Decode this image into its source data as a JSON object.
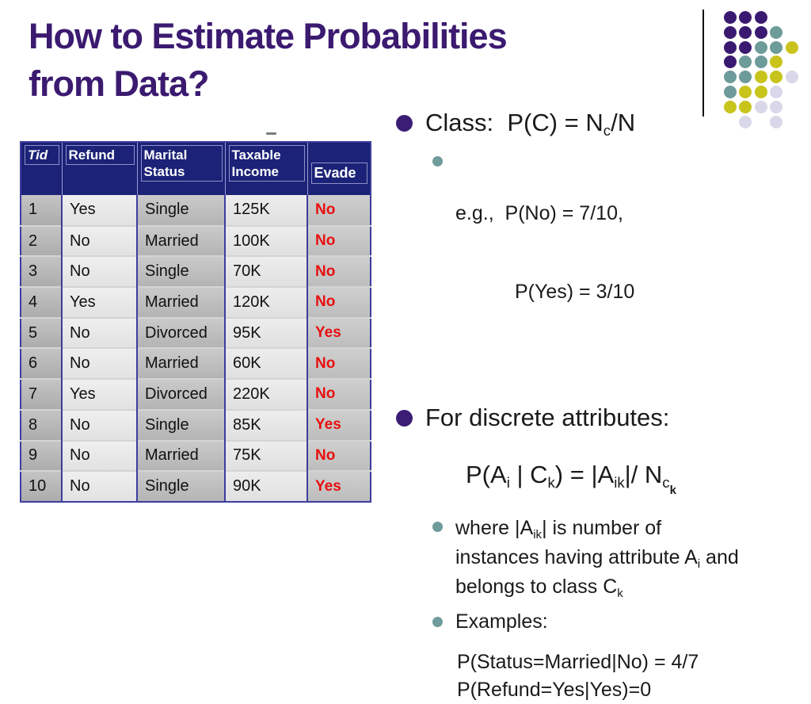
{
  "title": {
    "text": "How to Estimate Probabilities\nfrom Data?"
  },
  "table": {
    "headers": [
      "Tid",
      "Refund",
      "Marital\nStatus",
      "Taxable\nIncome",
      "Evade"
    ],
    "header_keys": [
      "tid",
      "refund",
      "marital-status",
      "taxable-income",
      "evade"
    ],
    "rows": [
      [
        "1",
        "Yes",
        "Single",
        "125K",
        "No"
      ],
      [
        "2",
        "No",
        "Married",
        "100K",
        "No"
      ],
      [
        "3",
        "No",
        "Single",
        "70K",
        "No"
      ],
      [
        "4",
        "Yes",
        "Married",
        "120K",
        "No"
      ],
      [
        "5",
        "No",
        "Divorced",
        "95K",
        "Yes"
      ],
      [
        "6",
        "No",
        "Married",
        "60K",
        "No"
      ],
      [
        "7",
        "Yes",
        "Divorced",
        "220K",
        "No"
      ],
      [
        "8",
        "No",
        "Single",
        "85K",
        "Yes"
      ],
      [
        "9",
        "No",
        "Married",
        "75K",
        "No"
      ],
      [
        "10",
        "No",
        "Single",
        "90K",
        "Yes"
      ]
    ]
  },
  "content": {
    "class_formula": {
      "pre": "Class:  P(C) = N",
      "sub": "c",
      "post": "/N"
    },
    "eg_line1": "e.g.,  P(No) = 7/10,",
    "eg_line2": "P(Yes) = 3/10",
    "discrete_heading": "For discrete attributes:",
    "cond_formula": {
      "s1": "P(A",
      "sub1": "i",
      "s2": " | C",
      "sub2": "k",
      "s3": ") = |A",
      "sub3": "ik",
      "s4": "|/ N",
      "sub4": "c",
      "sub4k": "k"
    },
    "where": {
      "s1": "where |A",
      "sub1": "ik",
      "s2": "| is number of\ninstances having attribute A",
      "sub2": "i",
      "s3": " and\nbelongs to class C",
      "sub3": "k"
    },
    "examples_label": "Examples:",
    "example_line1": "P(Status=Married|No) = 4/7",
    "example_line2": "P(Refund=Yes|Yes)=0"
  },
  "colors": {
    "title_purple": "#3b1a70",
    "header_navy": "#1b2277",
    "table_border": "#3d3da0",
    "evade_red": "#e90f0f",
    "bullet_purple": "#3b1d75",
    "bullet_teal": "#6f9b9b"
  },
  "decoration": {
    "dot_colors": {
      "P": "#3a1a70",
      "T": "#6d9b99",
      "Y": "#c8c41c",
      "L": "#d9d8ea"
    },
    "dot_rows": [
      [
        "P",
        "P",
        "P",
        null,
        null
      ],
      [
        "P",
        "P",
        "P",
        "T",
        null
      ],
      [
        "P",
        "P",
        "T",
        "T",
        "Y"
      ],
      [
        "P",
        "T",
        "T",
        "Y",
        null
      ],
      [
        "T",
        "T",
        "Y",
        "Y",
        "L"
      ],
      [
        "T",
        "Y",
        "Y",
        "L",
        null
      ],
      [
        "Y",
        "Y",
        "L",
        "L",
        null
      ],
      [
        null,
        "L",
        null,
        "L",
        null
      ]
    ]
  }
}
